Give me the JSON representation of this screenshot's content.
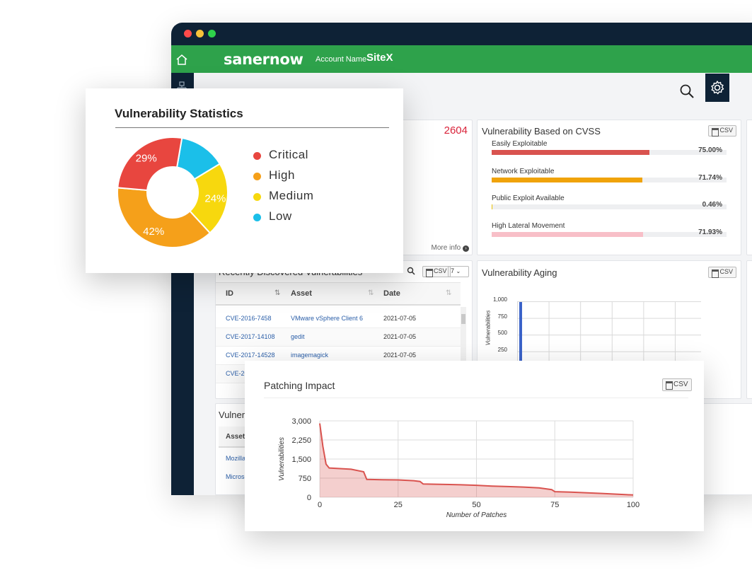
{
  "app": {
    "brand": "sanernow",
    "account_label": "Account Name",
    "account_value": "SiteX"
  },
  "total_panel": {
    "count": "2604",
    "more_info": "More info"
  },
  "cvss_panel": {
    "title": "Vulnerability Based on CVSS",
    "csv": "CSV",
    "bars": [
      {
        "label": "Easily Exploitable",
        "percent_text": "75.00%",
        "value": 75.0,
        "color": "#d9534f"
      },
      {
        "label": "Network Exploitable",
        "percent_text": "71.74%",
        "value": 71.74,
        "color": "#f0a30a"
      },
      {
        "label": "Public Exploit Available",
        "percent_text": "0.46%",
        "value": 0.46,
        "color": "#e8c000"
      },
      {
        "label": "High Lateral Movement",
        "percent_text": "71.93%",
        "value": 71.93,
        "color": "#f8bfc8"
      }
    ]
  },
  "recent_panel": {
    "title": "Recently Discovered Vulnerabilities",
    "csv": "CSV",
    "page_size": "7",
    "headers": [
      "ID",
      "Asset",
      "Date"
    ],
    "rows": [
      {
        "id": "CVE-2016-7458",
        "asset": "VMware vSphere Client 6",
        "date": "2021-07-05"
      },
      {
        "id": "CVE-2017-14108",
        "asset": "gedit",
        "date": "2021-07-05"
      },
      {
        "id": "CVE-2017-14528",
        "asset": "imagemagick",
        "date": "2021-07-05"
      },
      {
        "id": "CVE-20",
        "asset": "",
        "date": ""
      }
    ]
  },
  "aging_panel": {
    "title": "Vulnerability Aging",
    "csv": "CSV",
    "ylabel": "Vulnerabilities",
    "ticks": [
      "1,000",
      "750",
      "500",
      "250"
    ]
  },
  "bottom_panel": {
    "title": "Vulnera",
    "column": "Asset",
    "rows": [
      "Mozilla",
      "Microsof"
    ]
  },
  "stats_card": {
    "title": "Vulnerability Statistics",
    "legend": [
      {
        "label": "Critical",
        "color": "#e8463f"
      },
      {
        "label": "High",
        "color": "#f5a01a"
      },
      {
        "label": "Medium",
        "color": "#f7d80e"
      },
      {
        "label": "Low",
        "color": "#1bbfe9"
      }
    ]
  },
  "patch_card": {
    "title": "Patching Impact",
    "csv": "CSV"
  },
  "chart_data": [
    {
      "type": "pie",
      "title": "Vulnerability Statistics",
      "categories": [
        "Critical",
        "High",
        "Medium",
        "Low"
      ],
      "values": [
        29,
        42,
        24,
        15
      ],
      "labels_shown": [
        "29%",
        "42%",
        "24%",
        ""
      ],
      "colors": [
        "#e8463f",
        "#f5a01a",
        "#f7d80e",
        "#1bbfe9"
      ],
      "donut": true,
      "legend": "right"
    },
    {
      "type": "area",
      "title": "Patching Impact",
      "xlabel": "Number of Patches",
      "ylabel": "Vulnerabilities",
      "xlim": [
        0,
        100
      ],
      "ylim": [
        0,
        3000
      ],
      "xticks": [
        "0",
        "25",
        "50",
        "75",
        "100"
      ],
      "yticks": [
        "0",
        "750",
        "1,500",
        "2,250",
        "3,000"
      ],
      "grid": true,
      "x": [
        0,
        1,
        2,
        3,
        10,
        14,
        15,
        20,
        25,
        30,
        32,
        33,
        37,
        45,
        50,
        55,
        60,
        65,
        70,
        74,
        75,
        80,
        90,
        98,
        100
      ],
      "values": [
        2900,
        2000,
        1300,
        1150,
        1100,
        1000,
        700,
        690,
        680,
        650,
        620,
        520,
        510,
        490,
        470,
        440,
        420,
        400,
        370,
        300,
        220,
        200,
        150,
        100,
        90
      ],
      "color": "#d9534f"
    },
    {
      "type": "bar",
      "title": "Vulnerability Aging",
      "ylabel": "Vulnerabilities",
      "yticks": [
        "250",
        "500",
        "750",
        "1,000"
      ],
      "ylim": [
        0,
        1000
      ],
      "grid": true,
      "values": [
        1000
      ],
      "color": "#3b63c9"
    }
  ]
}
